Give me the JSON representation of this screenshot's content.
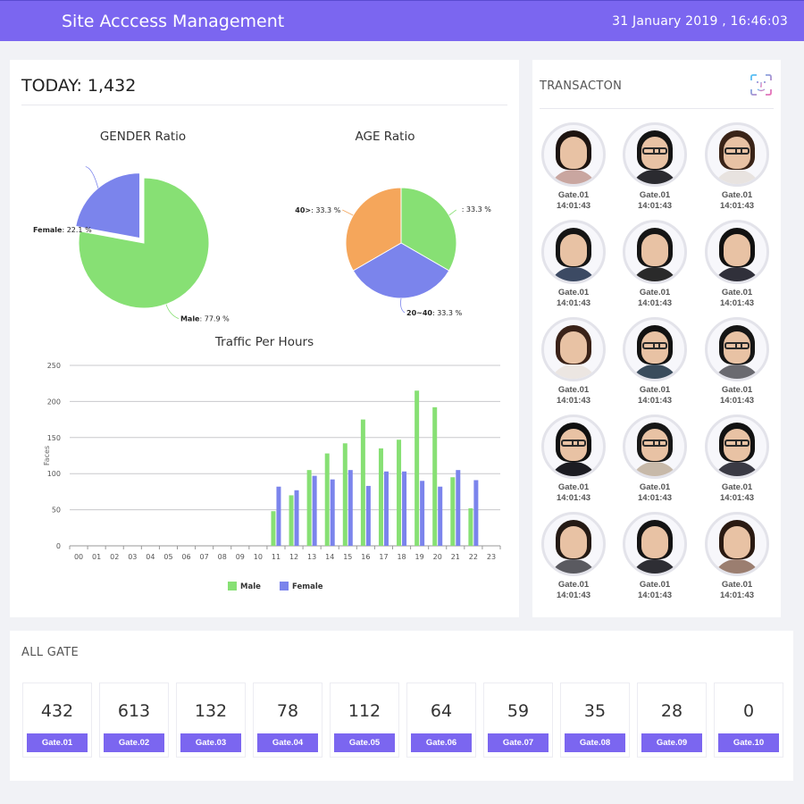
{
  "header": {
    "title": "Site Acccess Management",
    "datetime": "31 January 2019 , 16:46:03"
  },
  "today": {
    "label": "TODAY: 1,432"
  },
  "colors": {
    "accent": "#7b66f0",
    "male": "#87e074",
    "female": "#7b84ec",
    "age_40_plus": "#f5a65b"
  },
  "chart_data": [
    {
      "type": "pie",
      "title": "GENDER Ratio",
      "slices": [
        {
          "label": "Male",
          "value": 77.9,
          "display": ": 77.9 %"
        },
        {
          "label": "Female",
          "value": 22.1,
          "display": ": 22.1 %"
        }
      ]
    },
    {
      "type": "pie",
      "title": "AGE Ratio",
      "slices": [
        {
          "label": "",
          "value": 33.3,
          "display": ": 33.3 %"
        },
        {
          "label": "20~40",
          "value": 33.3,
          "display": ": 33.3 %"
        },
        {
          "label": "40>",
          "value": 33.3,
          "display": ": 33.3 %"
        }
      ]
    },
    {
      "type": "bar",
      "title": "Traffic Per Hours",
      "ylabel": "Faces",
      "ylim": [
        0,
        250
      ],
      "yticks": [
        "0",
        "50",
        "100",
        "150",
        "200",
        "250"
      ],
      "categories": [
        "00",
        "01",
        "02",
        "03",
        "04",
        "05",
        "06",
        "07",
        "08",
        "09",
        "10",
        "11",
        "12",
        "13",
        "14",
        "15",
        "16",
        "17",
        "18",
        "19",
        "20",
        "21",
        "22",
        "23"
      ],
      "series": [
        {
          "name": "Male",
          "values": [
            0,
            0,
            0,
            0,
            0,
            0,
            0,
            0,
            0,
            0,
            0,
            48,
            70,
            105,
            128,
            142,
            175,
            135,
            147,
            215,
            192,
            95,
            52,
            0
          ]
        },
        {
          "name": "Female",
          "values": [
            0,
            0,
            0,
            0,
            0,
            0,
            0,
            0,
            0,
            0,
            0,
            82,
            77,
            97,
            92,
            105,
            83,
            103,
            103,
            90,
            82,
            105,
            91,
            0
          ]
        }
      ],
      "legend_position": "bottom",
      "grid": true
    }
  ],
  "transaction": {
    "title": "TRANSACTON",
    "icon": "face-scan-icon",
    "items": [
      {
        "gate": "Gate.01",
        "time": "14:01:43",
        "hair": "#1d1410",
        "shirt": "#c9a6a0",
        "glasses": false
      },
      {
        "gate": "Gate.01",
        "time": "14:01:43",
        "hair": "#141414",
        "shirt": "#2b2b30",
        "glasses": true
      },
      {
        "gate": "Gate.01",
        "time": "14:01:43",
        "hair": "#3a2418",
        "shirt": "#e8e3e0",
        "glasses": true
      },
      {
        "gate": "Gate.01",
        "time": "14:01:43",
        "hair": "#151515",
        "shirt": "#3c4a63",
        "glasses": false
      },
      {
        "gate": "Gate.01",
        "time": "14:01:43",
        "hair": "#151515",
        "shirt": "#2a2a2a",
        "glasses": false
      },
      {
        "gate": "Gate.01",
        "time": "14:01:43",
        "hair": "#111111",
        "shirt": "#30303a",
        "glasses": false
      },
      {
        "gate": "Gate.01",
        "time": "14:01:43",
        "hair": "#3a2218",
        "shirt": "#ece6e2",
        "glasses": false
      },
      {
        "gate": "Gate.01",
        "time": "14:01:43",
        "hair": "#121212",
        "shirt": "#3a4c5c",
        "glasses": true
      },
      {
        "gate": "Gate.01",
        "time": "14:01:43",
        "hair": "#161616",
        "shirt": "#6a6a70",
        "glasses": true
      },
      {
        "gate": "Gate.01",
        "time": "14:01:43",
        "hair": "#101010",
        "shirt": "#1c1c22",
        "glasses": true
      },
      {
        "gate": "Gate.01",
        "time": "14:01:43",
        "hair": "#171717",
        "shirt": "#c7b9a9",
        "glasses": true
      },
      {
        "gate": "Gate.01",
        "time": "14:01:43",
        "hair": "#121212",
        "shirt": "#3a3a44",
        "glasses": true
      },
      {
        "gate": "Gate.01",
        "time": "14:01:43",
        "hair": "#241a14",
        "shirt": "#5a5a60",
        "glasses": false
      },
      {
        "gate": "Gate.01",
        "time": "14:01:43",
        "hair": "#141414",
        "shirt": "#2e2e34",
        "glasses": false
      },
      {
        "gate": "Gate.01",
        "time": "14:01:43",
        "hair": "#2a1a12",
        "shirt": "#9b7e70",
        "glasses": false
      }
    ]
  },
  "all_gate": {
    "title": "ALL GATE",
    "gates": [
      {
        "count": "432",
        "label": "Gate.01"
      },
      {
        "count": "613",
        "label": "Gate.02"
      },
      {
        "count": "132",
        "label": "Gate.03"
      },
      {
        "count": "78",
        "label": "Gate.04"
      },
      {
        "count": "112",
        "label": "Gate.05"
      },
      {
        "count": "64",
        "label": "Gate.06"
      },
      {
        "count": "59",
        "label": "Gate.07"
      },
      {
        "count": "35",
        "label": "Gate.08"
      },
      {
        "count": "28",
        "label": "Gate.09"
      },
      {
        "count": "0",
        "label": "Gate.10"
      }
    ]
  }
}
